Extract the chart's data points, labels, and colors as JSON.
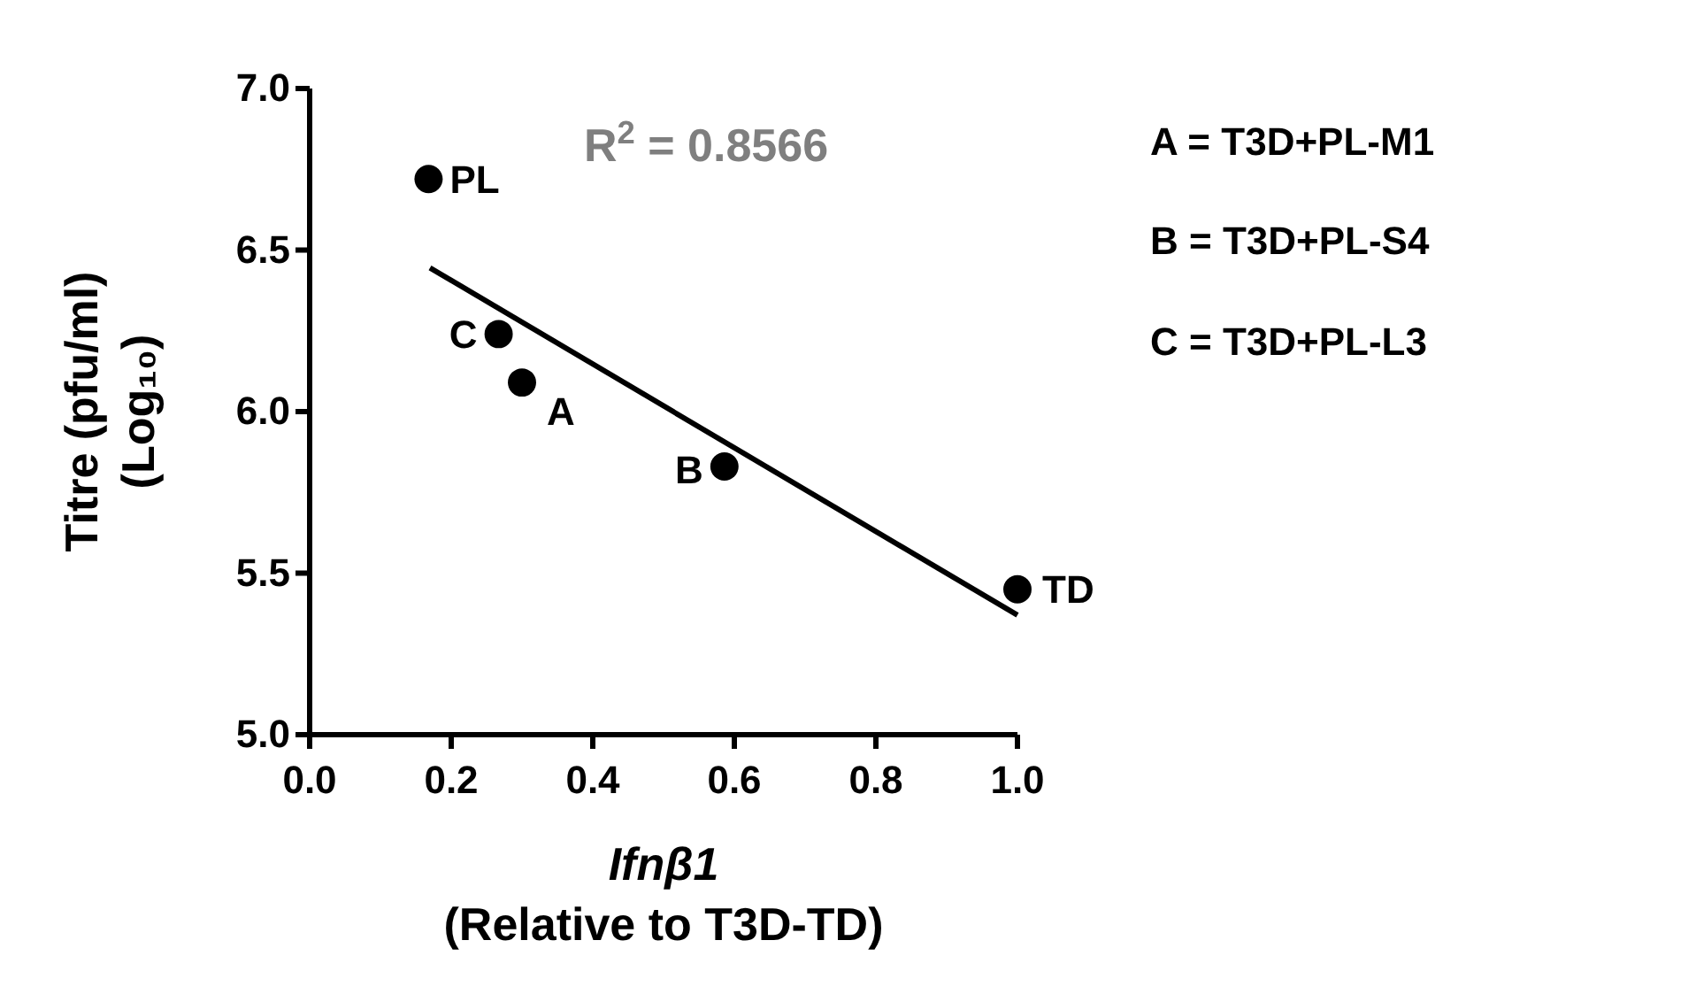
{
  "chart_data": {
    "type": "scatter",
    "xlabel": "Ifnβ1\n(Relative to T3D-TD)",
    "ylabel": "Titre (pfu/ml)\n(Log₁₀)",
    "xlim": [
      0,
      1
    ],
    "ylim": [
      5,
      7
    ],
    "xticks": [
      {
        "value": 0,
        "label": "0.0"
      },
      0.2,
      0.4,
      0.6,
      0.8,
      {
        "value": 1,
        "label": "1.0"
      }
    ],
    "yticks": [
      {
        "value": 5,
        "label": "5.0"
      },
      5.5,
      {
        "value": 6,
        "label": "6.0"
      },
      6.5,
      {
        "value": 7,
        "label": "7.0"
      }
    ],
    "grid": false,
    "marker": "circle",
    "series": [
      {
        "color": "#000000",
        "x": [
          0.168,
          0.267,
          0.3,
          0.586,
          1.0
        ],
        "values": [
          6.72,
          6.24,
          6.09,
          5.83,
          5.45
        ]
      },
      {
        "type": "line",
        "color": "#000000",
        "x": [
          0.17,
          1.0
        ],
        "values": [
          6.445,
          5.37
        ],
        "line_style": "solid",
        "marker": "none"
      }
    ],
    "annotations": [
      {
        "text": "PL",
        "x": 0.168,
        "y": 6.72
      },
      {
        "text": "C",
        "x": 0.267,
        "y": 6.24
      },
      {
        "text": "A",
        "x": 0.3,
        "y": 6.09
      },
      {
        "text": "B",
        "x": 0.586,
        "y": 5.83
      },
      {
        "text": "TD",
        "x": 1.0,
        "y": 5.45
      },
      "R$^{2}$ = 0.8566",
      "A = T3D+PL-M1",
      "B = T3D+PL-S4",
      "C = T3D+PL-L3"
    ]
  }
}
